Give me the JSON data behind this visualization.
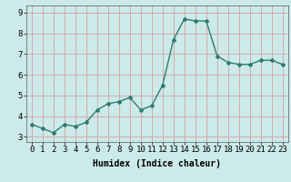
{
  "x": [
    0,
    1,
    2,
    3,
    4,
    5,
    6,
    7,
    8,
    9,
    10,
    11,
    12,
    13,
    14,
    15,
    16,
    17,
    18,
    19,
    20,
    21,
    22,
    23
  ],
  "y": [
    3.6,
    3.4,
    3.2,
    3.6,
    3.5,
    3.7,
    4.3,
    4.6,
    4.7,
    4.9,
    4.3,
    4.5,
    5.5,
    7.7,
    8.7,
    8.6,
    8.6,
    6.9,
    6.6,
    6.5,
    6.5,
    6.7,
    6.7,
    6.5
  ],
  "line_color": "#2e7d6e",
  "marker": "D",
  "marker_size": 2.0,
  "bg_color": "#cceaea",
  "grid_color_x": "#d4a0a0",
  "grid_color_y": "#d4a0a0",
  "xlabel": "Humidex (Indice chaleur)",
  "xlim": [
    -0.5,
    23.5
  ],
  "ylim": [
    2.75,
    9.35
  ],
  "yticks": [
    3,
    4,
    5,
    6,
    7,
    8,
    9
  ],
  "xticks": [
    0,
    1,
    2,
    3,
    4,
    5,
    6,
    7,
    8,
    9,
    10,
    11,
    12,
    13,
    14,
    15,
    16,
    17,
    18,
    19,
    20,
    21,
    22,
    23
  ],
  "xlabel_fontsize": 7,
  "tick_fontsize": 6.5,
  "line_width": 1.0
}
